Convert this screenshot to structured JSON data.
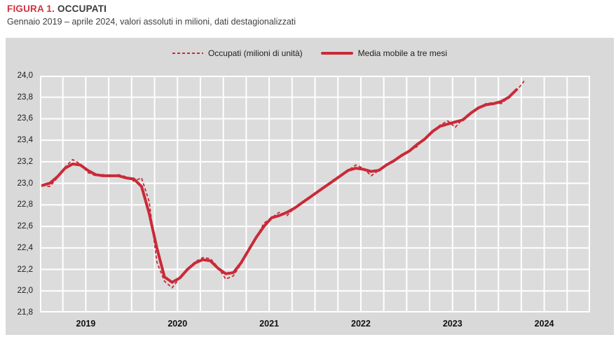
{
  "figure": {
    "label": "FIGURA 1.",
    "title": "OCCUPATI",
    "subtitle": "Gennaio 2019 – aprile 2024, valori assoluti in milioni, dati destagionalizzati"
  },
  "colors": {
    "accent_red": "#c92a38",
    "title_red": "#d2333f",
    "chart_background": "#d9d9d9",
    "plot_background": "#dcdcdc",
    "gridline": "#ffffff",
    "axis_text": "#1a1a1a"
  },
  "chart_data": {
    "type": "line",
    "title": "Occupati",
    "x_start": "2019-01",
    "x_end": "2024-04",
    "x_axis_total_months": 72,
    "x_gridline_every_months": 3,
    "x_tick_labels": [
      "2019",
      "2020",
      "2021",
      "2022",
      "2023",
      "2024"
    ],
    "ylim": [
      21.8,
      24.0
    ],
    "y_tick_step": 0.2,
    "y_tick_labels": [
      "24,0",
      "23,8",
      "23,6",
      "23,4",
      "23,2",
      "23,0",
      "22,8",
      "22,6",
      "22,4",
      "22,2",
      "22,0",
      "21,8"
    ],
    "grid": true,
    "legend_position": "top-center",
    "series": [
      {
        "name": "Occupati (milioni di unità)",
        "style": "dashed",
        "values": [
          22.98,
          22.97,
          23.05,
          23.15,
          23.22,
          23.18,
          23.1,
          23.07,
          23.08,
          23.06,
          23.08,
          23.06,
          23.02,
          23.05,
          22.83,
          22.27,
          22.09,
          22.03,
          22.12,
          22.21,
          22.27,
          22.31,
          22.3,
          22.22,
          22.11,
          22.14,
          22.25,
          22.38,
          22.5,
          22.63,
          22.68,
          22.73,
          22.7,
          22.77,
          22.83,
          22.87,
          22.92,
          22.97,
          23.03,
          23.06,
          23.12,
          23.17,
          23.14,
          23.07,
          23.12,
          23.17,
          23.21,
          23.25,
          23.31,
          23.34,
          23.42,
          23.47,
          23.54,
          23.58,
          23.52,
          23.6,
          23.66,
          23.7,
          23.74,
          23.75,
          23.74,
          23.8,
          23.86,
          23.95
        ]
      },
      {
        "name": "Media mobile a tre mesi",
        "style": "solid",
        "values": [
          22.98,
          23.0,
          23.06,
          23.14,
          23.18,
          23.17,
          23.12,
          23.08,
          23.07,
          23.07,
          23.07,
          23.05,
          23.04,
          22.97,
          22.72,
          22.4,
          22.13,
          22.08,
          22.12,
          22.2,
          22.26,
          22.29,
          22.28,
          22.21,
          22.16,
          22.17,
          22.26,
          22.38,
          22.5,
          22.6,
          22.68,
          22.7,
          22.73,
          22.77,
          22.82,
          22.87,
          22.92,
          22.97,
          23.02,
          23.07,
          23.12,
          23.14,
          23.13,
          23.11,
          23.12,
          23.17,
          23.21,
          23.26,
          23.3,
          23.36,
          23.41,
          23.48,
          23.53,
          23.55,
          23.57,
          23.59,
          23.65,
          23.7,
          23.73,
          23.74,
          23.76,
          23.8,
          23.87
        ]
      }
    ]
  }
}
